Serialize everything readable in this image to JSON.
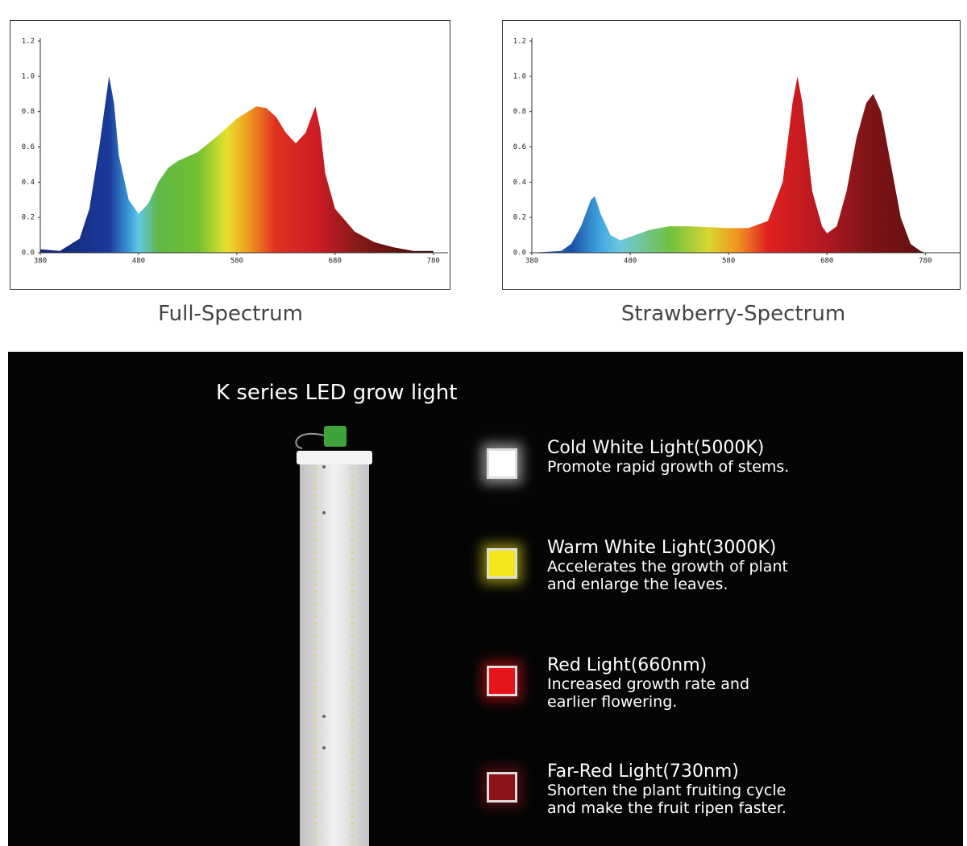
{
  "chart_data": [
    {
      "type": "area",
      "title": "Full-Spectrum",
      "x": [
        380,
        400,
        420,
        430,
        440,
        450,
        455,
        460,
        470,
        480,
        490,
        500,
        510,
        520,
        540,
        560,
        580,
        600,
        610,
        620,
        630,
        640,
        650,
        660,
        665,
        670,
        680,
        700,
        720,
        740,
        760,
        780
      ],
      "values": [
        0.02,
        0.01,
        0.08,
        0.25,
        0.6,
        1.0,
        0.85,
        0.55,
        0.3,
        0.22,
        0.28,
        0.4,
        0.48,
        0.52,
        0.57,
        0.66,
        0.76,
        0.83,
        0.82,
        0.77,
        0.68,
        0.62,
        0.68,
        0.83,
        0.7,
        0.45,
        0.25,
        0.12,
        0.06,
        0.03,
        0.01,
        0.01
      ],
      "colors": [
        {
          "x": 400,
          "color": "#14287a"
        },
        {
          "x": 450,
          "color": "#1a3a9a"
        },
        {
          "x": 470,
          "color": "#3a9ad8"
        },
        {
          "x": 480,
          "color": "#60c8e8"
        },
        {
          "x": 500,
          "color": "#60b848"
        },
        {
          "x": 540,
          "color": "#70c030"
        },
        {
          "x": 570,
          "color": "#e8e030"
        },
        {
          "x": 590,
          "color": "#f0a020"
        },
        {
          "x": 620,
          "color": "#e03020"
        },
        {
          "x": 660,
          "color": "#d01c24"
        },
        {
          "x": 700,
          "color": "#8a1a1a"
        },
        {
          "x": 780,
          "color": "#3a0a0a"
        }
      ],
      "xlim": [
        380,
        795
      ],
      "xticks": [
        380,
        480,
        580,
        680,
        780
      ],
      "ylim": [
        0,
        1.2
      ],
      "yticks": [
        {
          "value": 0,
          "label": "0.0"
        },
        0.2,
        0.4,
        0.6,
        0.8,
        {
          "value": 1,
          "label": "1.0"
        },
        1.2
      ]
    },
    {
      "type": "area",
      "title": "Strawberry-Spectrum",
      "x": [
        380,
        410,
        420,
        430,
        440,
        444,
        450,
        460,
        470,
        480,
        500,
        520,
        540,
        560,
        580,
        600,
        620,
        635,
        645,
        650,
        655,
        665,
        675,
        680,
        690,
        700,
        710,
        720,
        727,
        735,
        745,
        755,
        765,
        775,
        780
      ],
      "values": [
        0,
        0.01,
        0.05,
        0.15,
        0.3,
        0.32,
        0.22,
        0.1,
        0.07,
        0.09,
        0.13,
        0.15,
        0.15,
        0.145,
        0.14,
        0.14,
        0.18,
        0.4,
        0.85,
        1.0,
        0.85,
        0.35,
        0.15,
        0.11,
        0.15,
        0.35,
        0.65,
        0.85,
        0.9,
        0.8,
        0.5,
        0.2,
        0.05,
        0.01,
        0
      ],
      "colors": [
        {
          "x": 420,
          "color": "#1a50a8"
        },
        {
          "x": 450,
          "color": "#40a8e0"
        },
        {
          "x": 470,
          "color": "#70c8e0"
        },
        {
          "x": 520,
          "color": "#70c040"
        },
        {
          "x": 560,
          "color": "#d8d830"
        },
        {
          "x": 590,
          "color": "#f09020"
        },
        {
          "x": 620,
          "color": "#e02020"
        },
        {
          "x": 680,
          "color": "#b01820"
        },
        {
          "x": 720,
          "color": "#801418"
        },
        {
          "x": 780,
          "color": "#601010"
        }
      ],
      "xlim": [
        380,
        815
      ],
      "xticks": [
        380,
        480,
        580,
        680,
        780
      ],
      "ylim": [
        0,
        1.2
      ],
      "yticks": [
        {
          "value": 0,
          "label": "0.0"
        },
        0.2,
        0.4,
        0.6,
        0.8,
        {
          "value": 1,
          "label": "1.0"
        },
        1.2
      ]
    }
  ],
  "product": {
    "title": "K series LED grow light",
    "features": [
      {
        "title": "Cold White Light(5000K)",
        "description": "Promote rapid growth of stems.",
        "color": "#ffffff"
      },
      {
        "title": "Warm White Light(3000K)",
        "description": "Accelerates the growth of plant and enlarge the leaves.",
        "color": "#f5e61a"
      },
      {
        "title": "Red Light(660nm)",
        "description": "Increased growth rate and earlier flowering.",
        "color": "#e8141c"
      },
      {
        "title": "Far-Red Light(730nm)",
        "description": "Shorten the plant fruiting cycle and make the fruit ripen faster.",
        "color": "#8a1418"
      }
    ]
  }
}
